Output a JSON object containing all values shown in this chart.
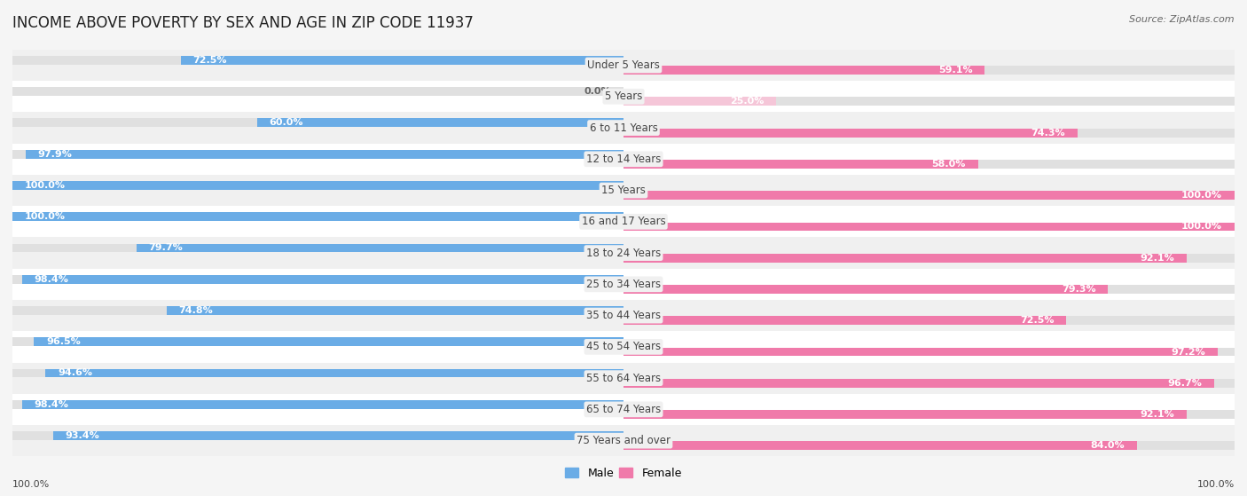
{
  "title": "INCOME ABOVE POVERTY BY SEX AND AGE IN ZIP CODE 11937",
  "source": "Source: ZipAtlas.com",
  "categories": [
    "Under 5 Years",
    "5 Years",
    "6 to 11 Years",
    "12 to 14 Years",
    "15 Years",
    "16 and 17 Years",
    "18 to 24 Years",
    "25 to 34 Years",
    "35 to 44 Years",
    "45 to 54 Years",
    "55 to 64 Years",
    "65 to 74 Years",
    "75 Years and over"
  ],
  "male_values": [
    72.5,
    0.0,
    60.0,
    97.9,
    100.0,
    100.0,
    79.7,
    98.4,
    74.8,
    96.5,
    94.6,
    98.4,
    93.4
  ],
  "female_values": [
    59.1,
    25.0,
    74.3,
    58.0,
    100.0,
    100.0,
    92.1,
    79.3,
    72.5,
    97.2,
    96.7,
    92.1,
    84.0
  ],
  "male_color": "#6aace6",
  "female_color": "#f07aaa",
  "female_light_color": "#f5c6d8",
  "male_light_color": "#b8d7f5",
  "row_color_even": "#f0f0f0",
  "row_color_odd": "#ffffff",
  "background_color": "#f5f5f5",
  "title_fontsize": 12,
  "label_fontsize": 8.5,
  "value_fontsize": 8,
  "legend_fontsize": 9,
  "source_fontsize": 8,
  "footer_value": "100.0%"
}
